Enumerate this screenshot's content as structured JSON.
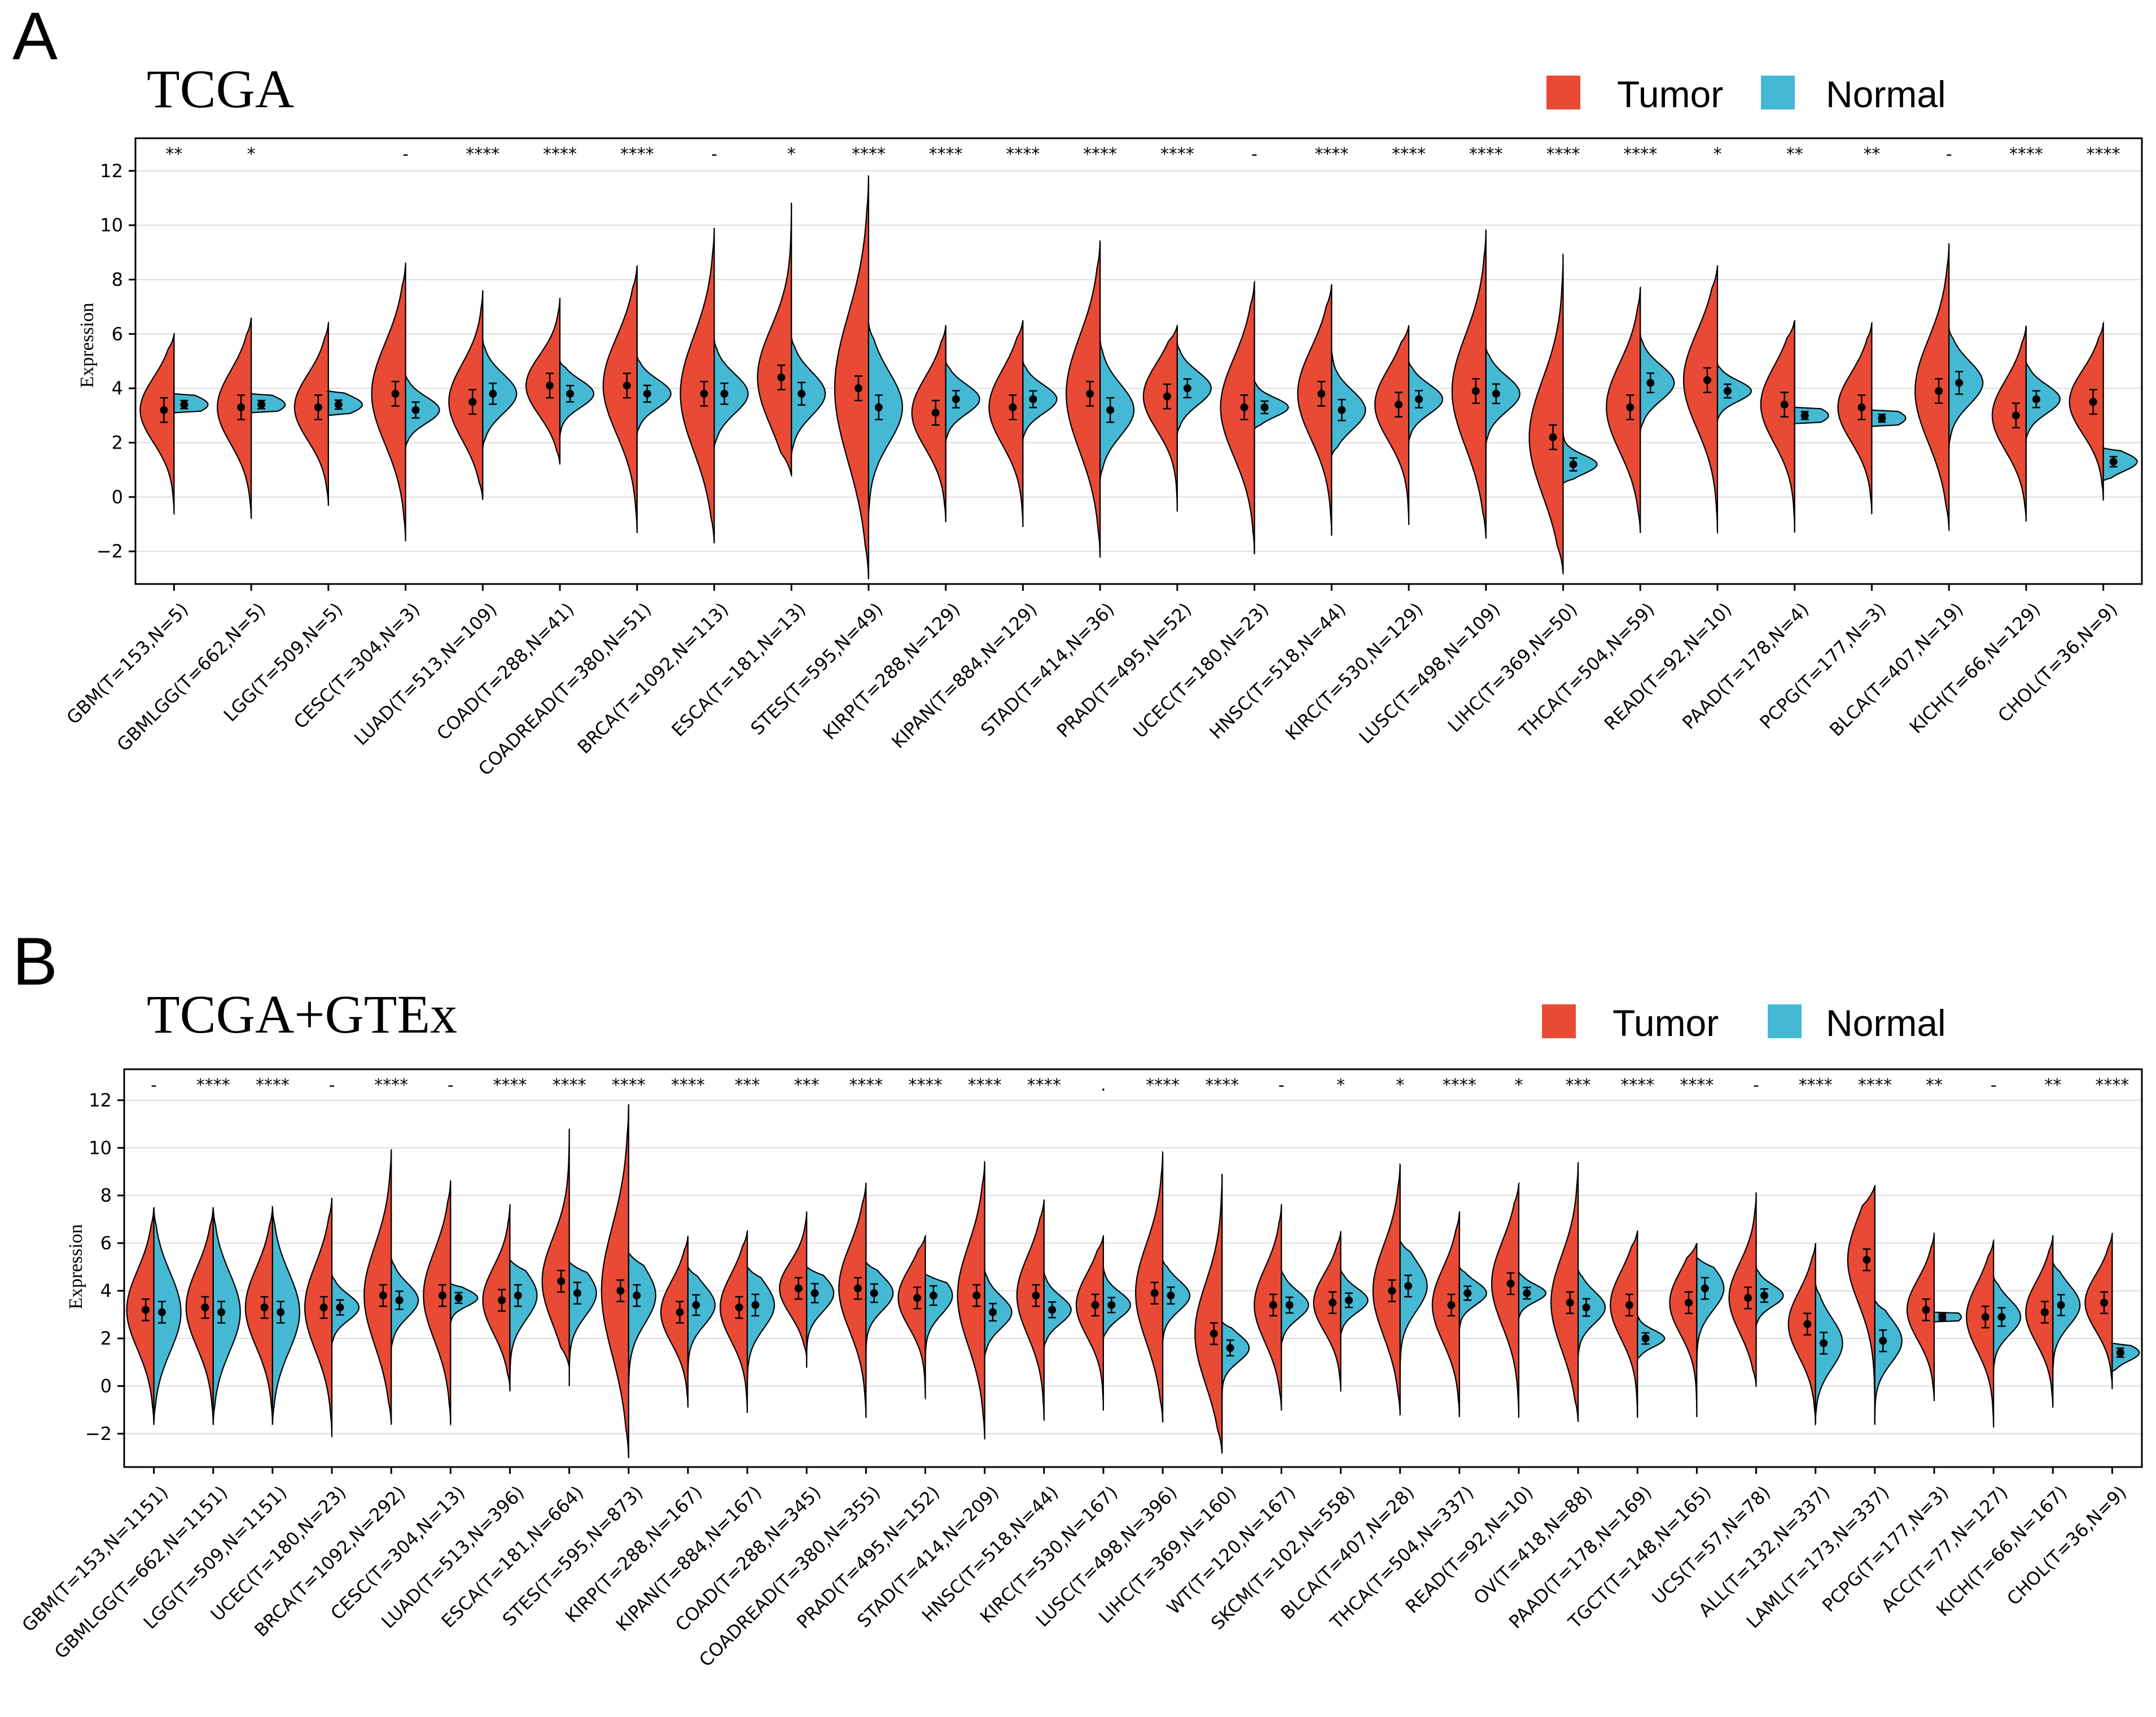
{
  "colors": {
    "tumor": "#E84A35",
    "normal": "#45B8D4",
    "grid": "#DDDDDD",
    "axis": "#000000"
  },
  "chart_data": [
    {
      "panel": "A",
      "type": "violin",
      "title": "TCGA",
      "ylabel": "Expression",
      "ylim": [
        -3.2,
        13.2
      ],
      "yticks": [
        -2,
        0,
        2,
        4,
        6,
        8,
        10,
        12
      ],
      "ytick_labels": [
        "−2",
        "0",
        "2",
        "4",
        "6",
        "8",
        "10",
        "12"
      ],
      "grid": true,
      "legend": {
        "position": "top-right",
        "entries": [
          "Tumor",
          "Normal"
        ]
      },
      "categories": [
        "GBM(T=153,N=5)",
        "GBMLGG(T=662,N=5)",
        "LGG(T=509,N=5)",
        "CESC(T=304,N=3)",
        "LUAD(T=513,N=109)",
        "COAD(T=288,N=41)",
        "COADREAD(T=380,N=51)",
        "BRCA(T=1092,N=113)",
        "ESCA(T=181,N=13)",
        "STES(T=595,N=49)",
        "KIRP(T=288,N=129)",
        "KIPAN(T=884,N=129)",
        "STAD(T=414,N=36)",
        "PRAD(T=495,N=52)",
        "UCEC(T=180,N=23)",
        "HNSC(T=518,N=44)",
        "KIRC(T=530,N=129)",
        "LUSC(T=498,N=109)",
        "LIHC(T=369,N=50)",
        "THCA(T=504,N=59)",
        "READ(T=92,N=10)",
        "PAAD(T=178,N=4)",
        "PCPG(T=177,N=3)",
        "BLCA(T=407,N=19)",
        "KICH(T=66,N=129)",
        "CHOL(T=36,N=9)"
      ],
      "significance": [
        "**",
        "*",
        "",
        "-",
        "****",
        "****",
        "****",
        "-",
        "*",
        "****",
        "****",
        "****",
        "****",
        "****",
        "-",
        "****",
        "****",
        "****",
        "****",
        "****",
        "*",
        "**",
        "**",
        "-",
        "****",
        "****"
      ],
      "series": [
        {
          "name": "Tumor",
          "median": [
            3.2,
            3.3,
            3.3,
            3.8,
            3.5,
            4.1,
            4.1,
            3.8,
            4.4,
            4.0,
            3.1,
            3.3,
            3.8,
            3.7,
            3.3,
            3.8,
            3.4,
            3.9,
            2.2,
            3.3,
            4.3,
            3.4,
            3.3,
            3.9,
            3.0,
            3.5
          ],
          "min": [
            -0.6,
            -0.8,
            -0.3,
            -1.6,
            -0.1,
            1.2,
            -1.3,
            -1.7,
            0.8,
            -3.0,
            -0.9,
            -1.1,
            -2.2,
            -0.5,
            -2.1,
            -1.4,
            -1.0,
            -1.5,
            -2.8,
            -1.3,
            -1.3,
            -1.3,
            -0.6,
            -1.2,
            -0.9,
            -0.1
          ],
          "max": [
            6.0,
            6.6,
            6.4,
            8.6,
            7.6,
            7.3,
            8.5,
            9.9,
            10.8,
            11.8,
            6.3,
            6.5,
            9.4,
            6.3,
            7.9,
            7.8,
            6.3,
            9.8,
            8.9,
            7.7,
            8.5,
            6.5,
            6.4,
            9.3,
            6.3,
            6.4
          ]
        },
        {
          "name": "Normal",
          "median": [
            3.4,
            3.4,
            3.4,
            3.2,
            3.8,
            3.8,
            3.8,
            3.8,
            3.8,
            3.3,
            3.6,
            3.6,
            3.2,
            4.0,
            3.3,
            3.2,
            3.6,
            3.8,
            1.2,
            4.2,
            3.9,
            3.0,
            2.9,
            4.2,
            3.6,
            1.3
          ],
          "min": [
            3.1,
            3.1,
            3.0,
            1.8,
            1.8,
            2.2,
            2.3,
            1.8,
            1.5,
            -0.8,
            2.0,
            2.1,
            0.6,
            2.3,
            2.5,
            1.5,
            2.0,
            1.9,
            0.5,
            2.4,
            2.8,
            2.7,
            2.6,
            1.8,
            2.1,
            0.6
          ],
          "max": [
            3.8,
            3.8,
            3.9,
            4.5,
            5.8,
            5.0,
            5.2,
            5.8,
            5.9,
            6.4,
            5.0,
            5.0,
            5.8,
            5.7,
            4.3,
            5.5,
            5.0,
            5.5,
            2.4,
            6.0,
            4.9,
            3.3,
            3.2,
            6.2,
            5.0,
            1.8
          ]
        }
      ]
    },
    {
      "panel": "B",
      "type": "violin",
      "title": "TCGA+GTEx",
      "ylabel": "Expression",
      "ylim": [
        -3.4,
        13.3
      ],
      "yticks": [
        -2,
        0,
        2,
        4,
        6,
        8,
        10,
        12
      ],
      "ytick_labels": [
        "−2",
        "0",
        "2",
        "4",
        "6",
        "8",
        "10",
        "12"
      ],
      "grid": true,
      "legend": {
        "position": "top-right",
        "entries": [
          "Tumor",
          "Normal"
        ]
      },
      "categories": [
        "GBM(T=153,N=1151)",
        "GBMLGG(T=662,N=1151)",
        "LGG(T=509,N=1151)",
        "UCEC(T=180,N=23)",
        "BRCA(T=1092,N=292)",
        "CESC(T=304,N=13)",
        "LUAD(T=513,N=396)",
        "ESCA(T=181,N=664)",
        "STES(T=595,N=873)",
        "KIRP(T=288,N=167)",
        "KIPAN(T=884,N=167)",
        "COAD(T=288,N=345)",
        "COADREAD(T=380,N=355)",
        "PRAD(T=495,N=152)",
        "STAD(T=414,N=209)",
        "HNSC(T=518,N=44)",
        "KIRC(T=530,N=167)",
        "LUSC(T=498,N=396)",
        "LIHC(T=369,N=160)",
        "WT(T=120,N=167)",
        "SKCM(T=102,N=558)",
        "BLCA(T=407,N=28)",
        "THCA(T=504,N=337)",
        "READ(T=92,N=10)",
        "OV(T=418,N=88)",
        "PAAD(T=178,N=169)",
        "TGCT(T=148,N=165)",
        "UCS(T=57,N=78)",
        "ALL(T=132,N=337)",
        "LAML(T=173,N=337)",
        "PCPG(T=177,N=3)",
        "ACC(T=77,N=127)",
        "KICH(T=66,N=167)",
        "CHOL(T=36,N=9)"
      ],
      "significance": [
        "-",
        "****",
        "****",
        "-",
        "****",
        "-",
        "****",
        "****",
        "****",
        "****",
        "***",
        "***",
        "****",
        "****",
        "****",
        "****",
        ".",
        "****",
        "****",
        "-",
        "*",
        "*",
        "****",
        "*",
        "***",
        "****",
        "****",
        "-",
        "****",
        "****",
        "**",
        "-",
        "**",
        "****"
      ],
      "series": [
        {
          "name": "Tumor",
          "median": [
            3.2,
            3.3,
            3.3,
            3.3,
            3.8,
            3.8,
            3.6,
            4.4,
            4.0,
            3.1,
            3.3,
            4.1,
            4.1,
            3.7,
            3.8,
            3.8,
            3.4,
            3.9,
            2.2,
            3.4,
            3.5,
            4.0,
            3.4,
            4.3,
            3.5,
            3.4,
            3.5,
            3.7,
            2.6,
            5.3,
            3.2,
            2.9,
            3.1,
            3.5
          ],
          "min": [
            -1.6,
            -1.6,
            -1.6,
            -2.1,
            -1.6,
            -1.6,
            -0.1,
            0.8,
            -3.0,
            -0.9,
            -1.1,
            1.2,
            -1.3,
            -0.5,
            -2.2,
            -1.4,
            -1.0,
            -1.5,
            -2.8,
            -1.0,
            -0.2,
            -1.2,
            -1.3,
            -1.3,
            -1.5,
            -1.3,
            -1.3,
            0.0,
            -1.6,
            -1.6,
            -0.6,
            -1.7,
            -0.9,
            -0.1
          ],
          "max": [
            7.5,
            7.5,
            7.5,
            7.9,
            9.9,
            8.6,
            7.6,
            10.8,
            11.8,
            6.3,
            6.5,
            7.3,
            8.5,
            6.3,
            9.4,
            7.8,
            6.3,
            9.8,
            8.9,
            7.6,
            6.5,
            9.3,
            7.3,
            8.5,
            9.4,
            6.5,
            6.0,
            8.1,
            6.0,
            8.4,
            6.4,
            6.1,
            6.3,
            6.4
          ]
        },
        {
          "name": "Normal",
          "median": [
            3.1,
            3.1,
            3.1,
            3.3,
            3.6,
            3.7,
            3.8,
            3.9,
            3.8,
            3.4,
            3.4,
            3.9,
            3.9,
            3.8,
            3.1,
            3.2,
            3.4,
            3.8,
            1.6,
            3.4,
            3.6,
            4.2,
            3.9,
            3.9,
            3.3,
            2.0,
            4.1,
            3.8,
            1.8,
            1.9,
            2.9,
            2.9,
            3.4,
            1.4
          ],
          "min": [
            -1.6,
            -1.6,
            -1.6,
            1.7,
            1.5,
            2.6,
            -0.2,
            0.0,
            -0.8,
            0.4,
            -0.4,
            0.8,
            1.2,
            0.4,
            1.2,
            1.6,
            2.0,
            1.8,
            -0.5,
            1.7,
            2.1,
            0.4,
            2.3,
            2.8,
            1.2,
            1.1,
            0.4,
            2.5,
            -1.5,
            -1.5,
            2.7,
            0.6,
            0.5,
            0.6
          ],
          "max": [
            7.5,
            7.5,
            7.5,
            4.7,
            5.4,
            4.3,
            5.3,
            5.2,
            5.6,
            5.0,
            5.0,
            5.0,
            5.2,
            4.7,
            4.9,
            4.8,
            5.0,
            5.3,
            2.7,
            4.9,
            4.9,
            6.1,
            5.0,
            4.8,
            4.9,
            3.0,
            5.4,
            5.0,
            4.3,
            3.6,
            3.1,
            4.6,
            5.2,
            1.8
          ]
        }
      ]
    }
  ],
  "legend_labels": {
    "tumor": "Tumor",
    "normal": "Normal"
  },
  "panel_letters": [
    "A",
    "B"
  ]
}
